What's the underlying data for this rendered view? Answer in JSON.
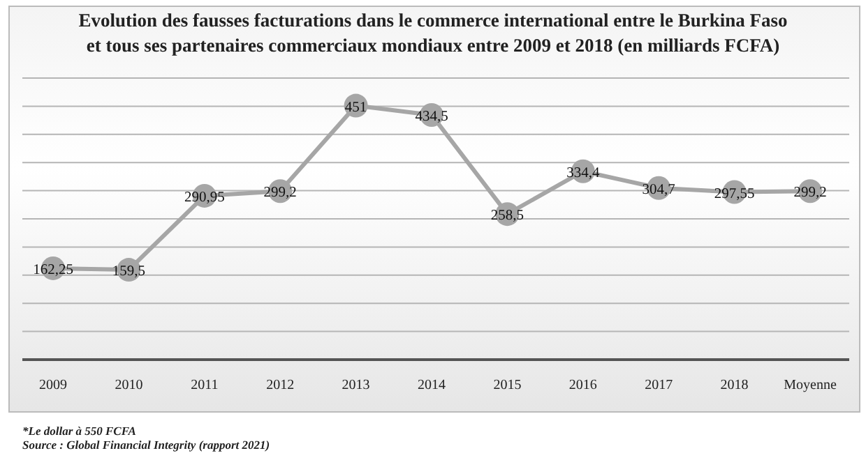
{
  "chart_data": {
    "type": "line",
    "title": "Evolution des fausses facturations dans le commerce international entre le Burkina Faso\net tous ses partenaires commerciaux mondiaux entre 2009 et 2018 (en milliards FCFA)",
    "categories": [
      "2009",
      "2010",
      "2011",
      "2012",
      "2013",
      "2014",
      "2015",
      "2016",
      "2017",
      "2018",
      "Moyenne"
    ],
    "series": [
      {
        "color": "#a6a6a6",
        "values": [
          162.25,
          159.5,
          290.95,
          299.2,
          451,
          434.5,
          258.5,
          334.4,
          304.7,
          297.55,
          299.2
        ],
        "value_labels": [
          "162,25",
          "159,5",
          "290,95",
          "299,2",
          "451",
          "434,5",
          "258,5",
          "334,4",
          "304,7",
          "297,55",
          "299,2"
        ]
      }
    ],
    "tick_labels": "x",
    "grid": "y",
    "marker": "circle",
    "line_style": "solid",
    "legend": false,
    "annotations": [
      "*Le dollar à 550 FCFA",
      "Source : Global Financial Integrity (rapport 2021)"
    ]
  }
}
